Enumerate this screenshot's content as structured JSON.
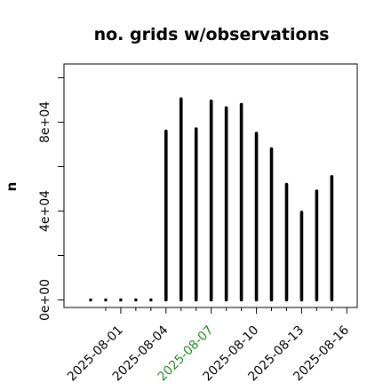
{
  "chart_data": {
    "type": "bar",
    "title": "no. grids w/observations",
    "xlabel": "",
    "ylabel": "n",
    "ylim": [
      0,
      103000
    ],
    "y_tick_values": [
      0,
      40000,
      80000
    ],
    "y_tick_labels": [
      "0e+00",
      "4e+04",
      "8e+04"
    ],
    "x_start_date": "2025-07-30",
    "categories": [
      "2025-07-30",
      "2025-07-31",
      "2025-08-01",
      "2025-08-02",
      "2025-08-03",
      "2025-08-04",
      "2025-08-05",
      "2025-08-06",
      "2025-08-07",
      "2025-08-08",
      "2025-08-09",
      "2025-08-10",
      "2025-08-11",
      "2025-08-12",
      "2025-08-13",
      "2025-08-14",
      "2025-08-15",
      "2025-08-16"
    ],
    "values": [
      0,
      0,
      0,
      0,
      0,
      76000,
      90500,
      77000,
      89500,
      86500,
      88000,
      75000,
      68000,
      52000,
      39500,
      49000,
      55500,
      0
    ],
    "x_tick_labels": [
      {
        "date": "2025-08-01",
        "label": "2025-08-01",
        "color": "#000000"
      },
      {
        "date": "2025-08-04",
        "label": "2025-08-04",
        "color": "#000000"
      },
      {
        "date": "2025-08-07",
        "label": "2025-08-07",
        "color": "#228B22"
      },
      {
        "date": "2025-08-10",
        "label": "2025-08-10",
        "color": "#000000"
      },
      {
        "date": "2025-08-13",
        "label": "2025-08-13",
        "color": "#000000"
      },
      {
        "date": "2025-08-16",
        "label": "2025-08-16",
        "color": "#000000"
      }
    ],
    "x_minor_tick_dates": [
      "2025-07-31",
      "2025-08-02",
      "2025-08-03",
      "2025-08-05",
      "2025-08-06",
      "2025-08-08",
      "2025-08-09",
      "2025-08-11",
      "2025-08-12",
      "2025-08-14",
      "2025-08-15"
    ],
    "bar_color": "#000000",
    "grid": false,
    "legend": "none"
  }
}
